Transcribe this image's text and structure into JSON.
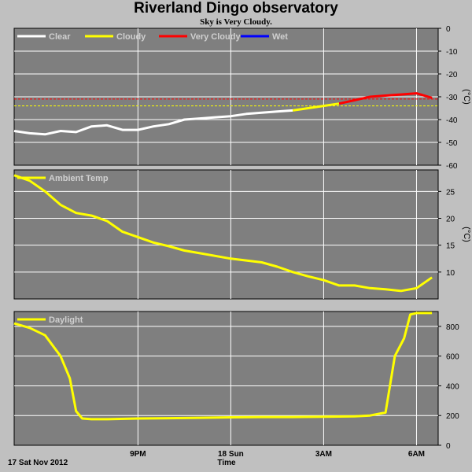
{
  "title": "Riverland Dingo observatory",
  "subtitle": "Sky is Very Cloudy.",
  "footer": {
    "date_label": "17 Sat Nov 2012",
    "xlabel": "Time"
  },
  "colors": {
    "background": "#c0c0c0",
    "panel": "#7f7f7f",
    "grid": "#ffffff",
    "clear": "#ffffff",
    "cloudy": "#ffff00",
    "very_cloudy": "#ff0000",
    "wet": "#0000ff",
    "series": "#ffff00"
  },
  "chart_data": [
    {
      "type": "line",
      "panel": "sky",
      "ylabel": "(°C)",
      "ylim": [
        -60,
        0
      ],
      "yticks": [
        0,
        -10,
        -20,
        -30,
        -40,
        -50,
        -60
      ],
      "legend": [
        {
          "name": "Clear",
          "color": "#ffffff"
        },
        {
          "name": "Cloudy",
          "color": "#ffff00"
        },
        {
          "name": "Very Cloudy",
          "color": "#ff0000"
        },
        {
          "name": "Wet",
          "color": "#0000ff"
        }
      ],
      "thresholds": [
        {
          "value": -31,
          "color": "#ff0000"
        },
        {
          "value": -34,
          "color": "#ffff00"
        }
      ],
      "series": [
        {
          "state": "Clear",
          "color": "#ffffff",
          "x": [
            17.0,
            17.5,
            18.0,
            18.5,
            19.0,
            19.5,
            20.0,
            20.5,
            21.0,
            21.5,
            22.0,
            22.5,
            23.0,
            23.5,
            24.0,
            24.5,
            25.0,
            25.5,
            26.0
          ],
          "values": [
            -45,
            -46,
            -46.5,
            -45,
            -45.5,
            -43,
            -42.5,
            -44.5,
            -44.5,
            -43,
            -42,
            -40,
            -39.5,
            -39,
            -38.5,
            -37.5,
            -37,
            -36.5,
            -36
          ]
        },
        {
          "state": "Cloudy",
          "color": "#ffff00",
          "x": [
            26.0,
            26.5,
            27.0,
            27.5
          ],
          "values": [
            -36,
            -35,
            -34,
            -33
          ]
        },
        {
          "state": "Very Cloudy",
          "color": "#ff0000",
          "x": [
            27.5,
            28.0,
            28.5,
            29.0,
            29.5,
            30.0,
            30.5
          ],
          "values": [
            -33,
            -31.5,
            -30,
            -29.5,
            -29,
            -28.5,
            -30.5
          ]
        }
      ]
    },
    {
      "type": "line",
      "panel": "ambient",
      "ylabel": "(°C)",
      "ylim": [
        5,
        29
      ],
      "yticks": [
        10,
        15,
        20,
        25
      ],
      "legend": [
        {
          "name": "Ambient Temp",
          "color": "#ffff00"
        }
      ],
      "series": [
        {
          "name": "Ambient Temp",
          "color": "#ffff00",
          "x": [
            17.0,
            17.5,
            18.0,
            18.5,
            19.0,
            19.5,
            20.0,
            20.5,
            21.0,
            21.5,
            22.0,
            22.5,
            23.0,
            24.0,
            25.0,
            25.5,
            26.0,
            26.5,
            27.0,
            27.5,
            28.0,
            28.5,
            29.0,
            29.5,
            30.0,
            30.5
          ],
          "values": [
            28,
            27,
            25,
            22.5,
            21,
            20.5,
            19.5,
            17.5,
            16.5,
            15.5,
            14.8,
            14,
            13.5,
            12.5,
            11.8,
            11,
            10,
            9.2,
            8.5,
            7.5,
            7.5,
            7,
            6.8,
            6.5,
            7,
            9
          ]
        }
      ]
    },
    {
      "type": "line",
      "panel": "daylight",
      "ylabel": "",
      "ylim": [
        0,
        900
      ],
      "yticks": [
        0,
        200,
        400,
        600,
        800
      ],
      "legend": [
        {
          "name": "Daylight",
          "color": "#ffff00"
        }
      ],
      "series": [
        {
          "name": "Daylight",
          "color": "#ffff00",
          "x": [
            17.0,
            17.5,
            18.0,
            18.5,
            18.8,
            19.0,
            19.2,
            19.5,
            20.0,
            21.0,
            22.0,
            23.0,
            24.0,
            25.0,
            26.0,
            27.0,
            28.0,
            28.5,
            29.0,
            29.3,
            29.6,
            29.8,
            30.0,
            30.3,
            30.5
          ],
          "values": [
            820,
            790,
            740,
            600,
            450,
            230,
            180,
            175,
            175,
            180,
            182,
            185,
            188,
            190,
            190,
            192,
            195,
            200,
            220,
            600,
            720,
            880,
            890,
            890,
            890
          ]
        }
      ]
    }
  ],
  "x_axis": {
    "range": [
      17.0,
      30.7
    ],
    "ticks": [
      {
        "value": 21,
        "label": "9PM"
      },
      {
        "value": 24,
        "label": "18 Sun"
      },
      {
        "value": 27,
        "label": "3AM"
      },
      {
        "value": 30,
        "label": "6AM"
      }
    ]
  }
}
